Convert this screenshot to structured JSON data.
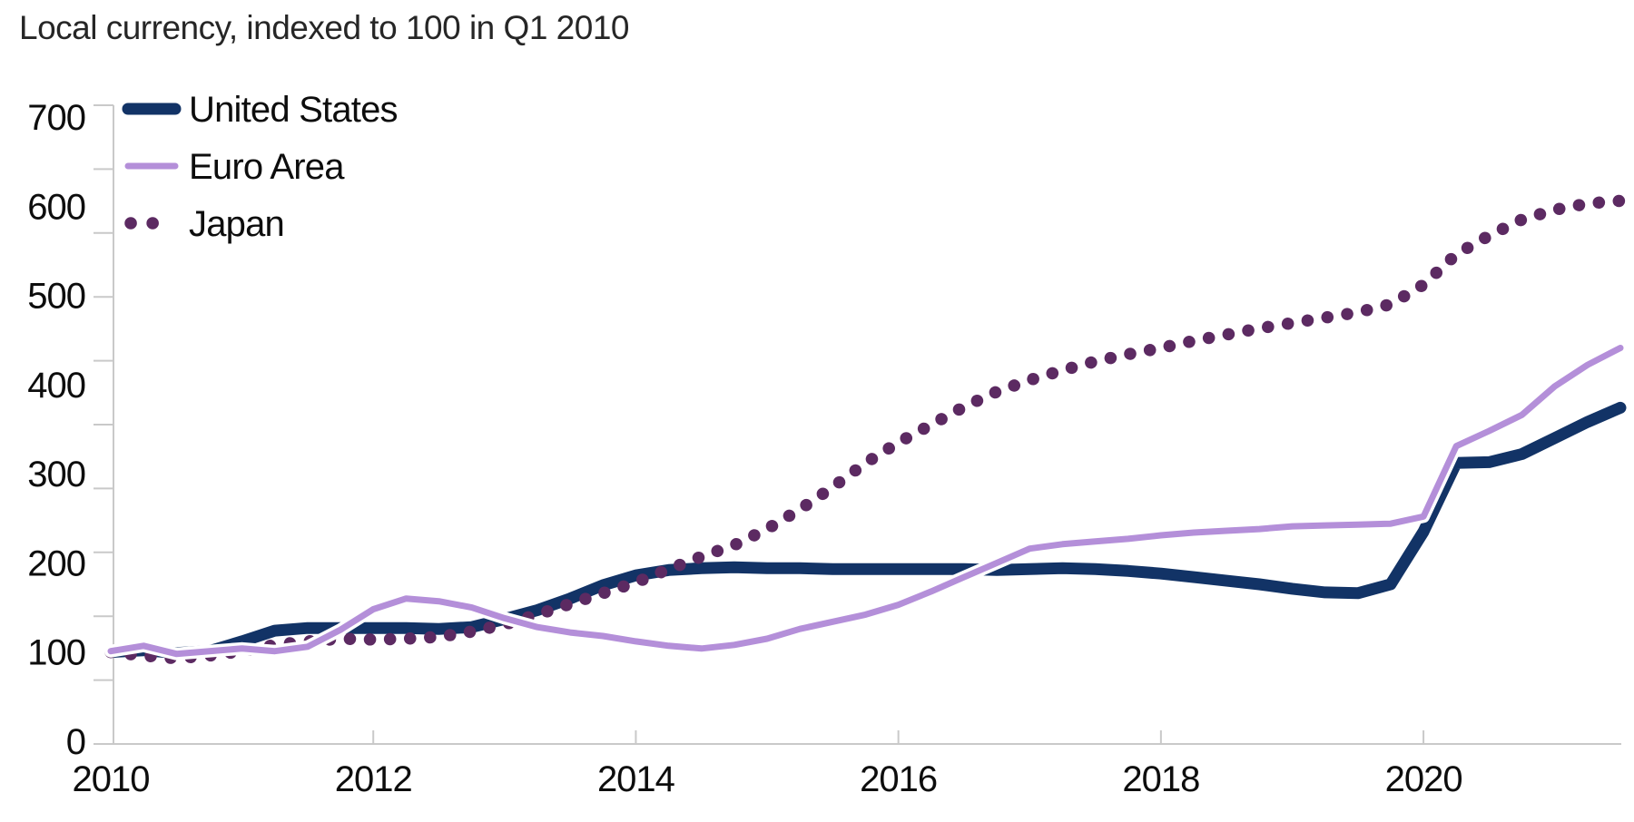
{
  "title": "Local currency, indexed to 100 in Q1 2010",
  "chart_data": {
    "type": "line",
    "title": "Local currency, indexed to 100 in Q1 2010",
    "x_axis": {
      "tick_labels": [
        "2010",
        "2012",
        "2014",
        "2016",
        "2018",
        "2020"
      ],
      "tick_years": [
        2010,
        2012,
        2014,
        2016,
        2018,
        2020
      ],
      "start": "2010 Q1",
      "end": "2021 Q3",
      "frequency": "quarterly"
    },
    "y_axis": {
      "ticks": [
        0,
        100,
        200,
        300,
        400,
        500,
        600,
        700
      ],
      "range": [
        0,
        700
      ],
      "minor_tick_count": 11
    },
    "grid": false,
    "legend_position": "top-left",
    "axis_color": "#c9c9c9",
    "text_color": "#0d0d0d",
    "background_color": "#ffffff",
    "series": [
      {
        "name": "United States",
        "color": "#123366",
        "style": "solid",
        "width": 13,
        "draw_order": 1,
        "casing": false,
        "values": [
          100,
          102,
          99,
          101,
          112,
          124,
          127,
          127,
          127,
          127,
          126,
          128,
          137,
          147,
          160,
          175,
          186,
          192,
          194,
          195,
          194,
          194,
          193,
          193,
          193,
          193,
          193,
          192,
          193,
          194,
          193,
          191,
          188,
          184,
          180,
          176,
          171,
          167,
          166,
          176,
          235,
          312,
          313,
          322,
          340,
          358,
          374
        ]
      },
      {
        "name": "Euro Area",
        "color": "#b48fd9",
        "style": "solid",
        "width": 7,
        "draw_order": 3,
        "casing": true,
        "values": [
          101,
          107,
          98,
          101,
          104,
          101,
          106,
          125,
          148,
          160,
          157,
          150,
          138,
          128,
          122,
          118,
          112,
          107,
          104,
          108,
          115,
          126,
          134,
          142,
          153,
          168,
          184,
          200,
          216,
          221,
          224,
          227,
          231,
          234,
          236,
          238,
          241,
          242,
          243,
          244,
          252,
          331,
          348,
          366,
          398,
          422,
          441
        ]
      },
      {
        "name": "Japan",
        "color": "#5c2a62",
        "style": "dotted",
        "width": 13.5,
        "draw_order": 2,
        "casing": false,
        "values": [
          100,
          96,
          93,
          96,
          101,
          108,
          112,
          115,
          114,
          115,
          117,
          123,
          131,
          142,
          154,
          166,
          178,
          193,
          207,
          220,
          238,
          260,
          285,
          312,
          335,
          355,
          375,
          392,
          405,
          416,
          426,
          434,
          441,
          449,
          456,
          463,
          469,
          475,
          481,
          490,
          512,
          546,
          567,
          585,
          596,
          603,
          606
        ]
      }
    ]
  }
}
